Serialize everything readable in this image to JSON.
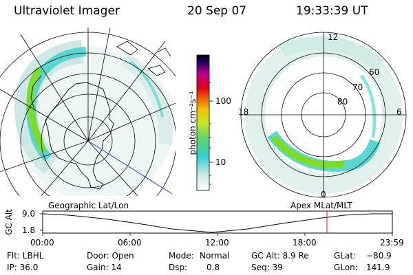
{
  "header": {
    "instrument": "Ultraviolet Imager",
    "date": "20 Sep 07",
    "time": "19:33:39 UT"
  },
  "colorbar": {
    "unit_label": "photon cm⁻²s⁻¹",
    "ticks": [
      "100",
      "10"
    ]
  },
  "right_panel": {
    "mlt_labels": [
      "12",
      "18",
      "6",
      "0"
    ],
    "lat_labels": [
      "60",
      "70",
      "80"
    ]
  },
  "timeline": {
    "left_title": "Geographic Lat/Lon",
    "right_title": "Apex MLat/MLT",
    "axis_label": "GC Alt",
    "y_ticks": [
      "9.0",
      "1.8"
    ],
    "x_ticks": [
      "00:00",
      "06:00",
      "12:00",
      "18:00",
      "23:59"
    ]
  },
  "info": {
    "filter": "Flt: LBHL",
    "ip": "IP: 36.0",
    "door": "Door: Open",
    "gain": "Gain: 14",
    "mode_label": "Mode:",
    "mode_value": "Normal",
    "dsp_label": "Dsp:",
    "dsp_value": "0.8",
    "gcalt": "GC Alt: 8.9 Re",
    "seq": "Seq: 39",
    "glat_label": "GLat:",
    "glat_value": "−80.9",
    "glon_label": "GLon:",
    "glon_value": "141.9"
  },
  "colors": {
    "aurora_high": "#7ddc2a",
    "aurora_mid": "#40d0c8",
    "aurora_low": "#c8e6e2",
    "track_marker": "#c81e1e",
    "satellite_track": "#1e3cc8"
  }
}
